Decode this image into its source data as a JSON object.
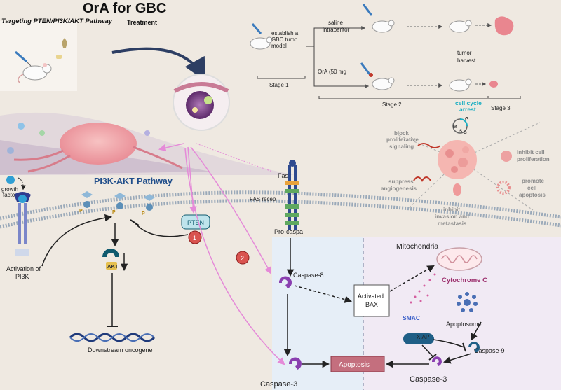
{
  "header": {
    "title": "OrA for GBC",
    "subtitle": "Targeting PTEN/PI3K/AKT  Pathway",
    "treatment": "Treatment"
  },
  "protocol": {
    "establish_line1": "establish a",
    "establish_line2": "GBC tumo",
    "establish_line3": "model",
    "saline_line1": "saline",
    "saline_line2": "intraperitor",
    "ora_dose": "OrA (50 mg",
    "harvest_line1": "tumor",
    "harvest_line2": "harvest",
    "stage1": "Stage 1",
    "stage2": "Stage 2",
    "stage3": "Stage 3"
  },
  "effects": {
    "cell_cycle_line1": "cell  cycle",
    "cell_cycle_line2": "arrest",
    "phase_g1": "G",
    "phase_m": "M",
    "phase_s": "S",
    "phase_g2": "G",
    "block_line1": "block",
    "block_line2": "proliferative",
    "block_line3": "signaling",
    "inhibit_prolif_line1": "inhibit  cell",
    "inhibit_prolif_line2": "proliferation",
    "suppress_line1": "suppress",
    "suppress_line2": "angiogenesis",
    "apoptosis_line1": "promote",
    "apoptosis_line2": "cell",
    "apoptosis_line3": "apoptosis",
    "invasion_line1": "inhibit",
    "invasion_line2": "invasion and",
    "invasion_line3": "metastasis"
  },
  "pi3k": {
    "pathway_title": "PI3K-AKT Pathway",
    "growth_factor_line1": "growth",
    "growth_factor_line2": "factor",
    "activation_line1": "Activation of",
    "activation_line2": "PI3K",
    "p_label": "P",
    "pten": "PTEN",
    "akt": "AKT",
    "oncogene": "Downstream oncogene",
    "step1": "1",
    "step2": "2"
  },
  "apoptosis_path": {
    "fas": "Fas",
    "fas_receptor": "FAS recep",
    "pro_caspase": "Pro-caspa",
    "caspase8": "Caspase-8",
    "bax_line1": "Activated",
    "bax_line2": "BAX",
    "mitochondria": "Mitochondria",
    "cytochrome": "Cytochrome C",
    "smac": "SMAC",
    "apoptosome": "Apoptosome",
    "xiap": "XIAP",
    "caspase9": "Caspase-9",
    "caspase3_left": "Caspase-3",
    "caspase3_right": "Caspase-3",
    "apoptosis": "Apoptosis"
  },
  "colors": {
    "background": "#efe9e1",
    "pink_arrow": "#e58ad8",
    "membrane": "#9aa9b9",
    "tumor": "#f2a8a8",
    "pathway_title": "#1f4d8a",
    "teal": "#0f5a6e",
    "purple": "#8a3fb0",
    "apoptosis_box": "#c46f7e",
    "cytochrome": "#9c2f6d",
    "smac": "#3b5fc9",
    "step_badge": "#d9534f",
    "cell_cycle": "#1aaec2",
    "effect_text": "#8c8c8c"
  }
}
